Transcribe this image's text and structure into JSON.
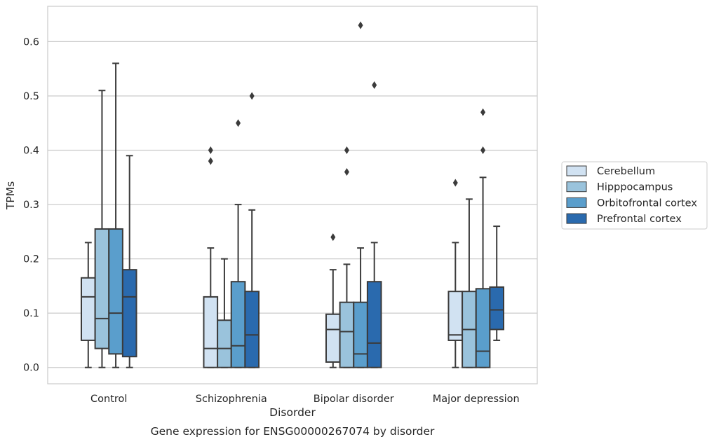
{
  "chart_data": {
    "type": "box",
    "title": "",
    "caption": "Gene expression for ENSG00000267074 by disorder",
    "xlabel": "Disorder",
    "ylabel": "TPMs",
    "ylim": [
      -0.03,
      0.665
    ],
    "yticks": [
      0.0,
      0.1,
      0.2,
      0.3,
      0.4,
      0.5,
      0.6
    ],
    "ytick_labels": [
      "0.0",
      "0.1",
      "0.2",
      "0.3",
      "0.4",
      "0.5",
      "0.6"
    ],
    "grid": "horizontal",
    "legend_position": "right-outside",
    "categories": [
      "Control",
      "Schizophrenia",
      "Bipolar disorder",
      "Major depression"
    ],
    "series": [
      {
        "name": "Cerebellum",
        "color": "#d1e2f2",
        "boxes": [
          {
            "whisker_low": 0.0,
            "q1": 0.05,
            "median": 0.13,
            "q3": 0.165,
            "whisker_high": 0.23,
            "outliers": []
          },
          {
            "whisker_low": 0.0,
            "q1": 0.0,
            "median": 0.035,
            "q3": 0.13,
            "whisker_high": 0.22,
            "outliers": [
              0.38,
              0.4
            ]
          },
          {
            "whisker_low": 0.0,
            "q1": 0.01,
            "median": 0.07,
            "q3": 0.098,
            "whisker_high": 0.18,
            "outliers": [
              0.24
            ]
          },
          {
            "whisker_low": 0.0,
            "q1": 0.05,
            "median": 0.06,
            "q3": 0.14,
            "whisker_high": 0.23,
            "outliers": [
              0.34
            ]
          }
        ]
      },
      {
        "name": "Hipppocampus",
        "color": "#9ac3dc",
        "boxes": [
          {
            "whisker_low": 0.0,
            "q1": 0.035,
            "median": 0.09,
            "q3": 0.255,
            "whisker_high": 0.51,
            "outliers": []
          },
          {
            "whisker_low": 0.0,
            "q1": 0.0,
            "median": 0.035,
            "q3": 0.087,
            "whisker_high": 0.2,
            "outliers": []
          },
          {
            "whisker_low": 0.0,
            "q1": 0.0,
            "median": 0.066,
            "q3": 0.12,
            "whisker_high": 0.19,
            "outliers": [
              0.36,
              0.4
            ]
          },
          {
            "whisker_low": 0.0,
            "q1": 0.0,
            "median": 0.07,
            "q3": 0.14,
            "whisker_high": 0.31,
            "outliers": []
          }
        ]
      },
      {
        "name": "Orbitofrontal cortex",
        "color": "#5a9ecc",
        "boxes": [
          {
            "whisker_low": 0.0,
            "q1": 0.025,
            "median": 0.1,
            "q3": 0.255,
            "whisker_high": 0.56,
            "outliers": []
          },
          {
            "whisker_low": 0.0,
            "q1": 0.0,
            "median": 0.04,
            "q3": 0.158,
            "whisker_high": 0.3,
            "outliers": [
              0.45
            ]
          },
          {
            "whisker_low": 0.0,
            "q1": 0.0,
            "median": 0.025,
            "q3": 0.12,
            "whisker_high": 0.22,
            "outliers": [
              0.63
            ]
          },
          {
            "whisker_low": 0.0,
            "q1": 0.0,
            "median": 0.03,
            "q3": 0.145,
            "whisker_high": 0.35,
            "outliers": [
              0.4,
              0.47
            ]
          }
        ]
      },
      {
        "name": "Prefrontal cortex",
        "color": "#2a6aae",
        "boxes": [
          {
            "whisker_low": 0.0,
            "q1": 0.02,
            "median": 0.13,
            "q3": 0.18,
            "whisker_high": 0.39,
            "outliers": []
          },
          {
            "whisker_low": 0.0,
            "q1": 0.0,
            "median": 0.06,
            "q3": 0.14,
            "whisker_high": 0.29,
            "outliers": [
              0.5
            ]
          },
          {
            "whisker_low": 0.0,
            "q1": 0.0,
            "median": 0.045,
            "q3": 0.158,
            "whisker_high": 0.23,
            "outliers": [
              0.52
            ]
          },
          {
            "whisker_low": 0.05,
            "q1": 0.07,
            "median": 0.106,
            "q3": 0.148,
            "whisker_high": 0.26,
            "outliers": []
          }
        ]
      }
    ]
  }
}
